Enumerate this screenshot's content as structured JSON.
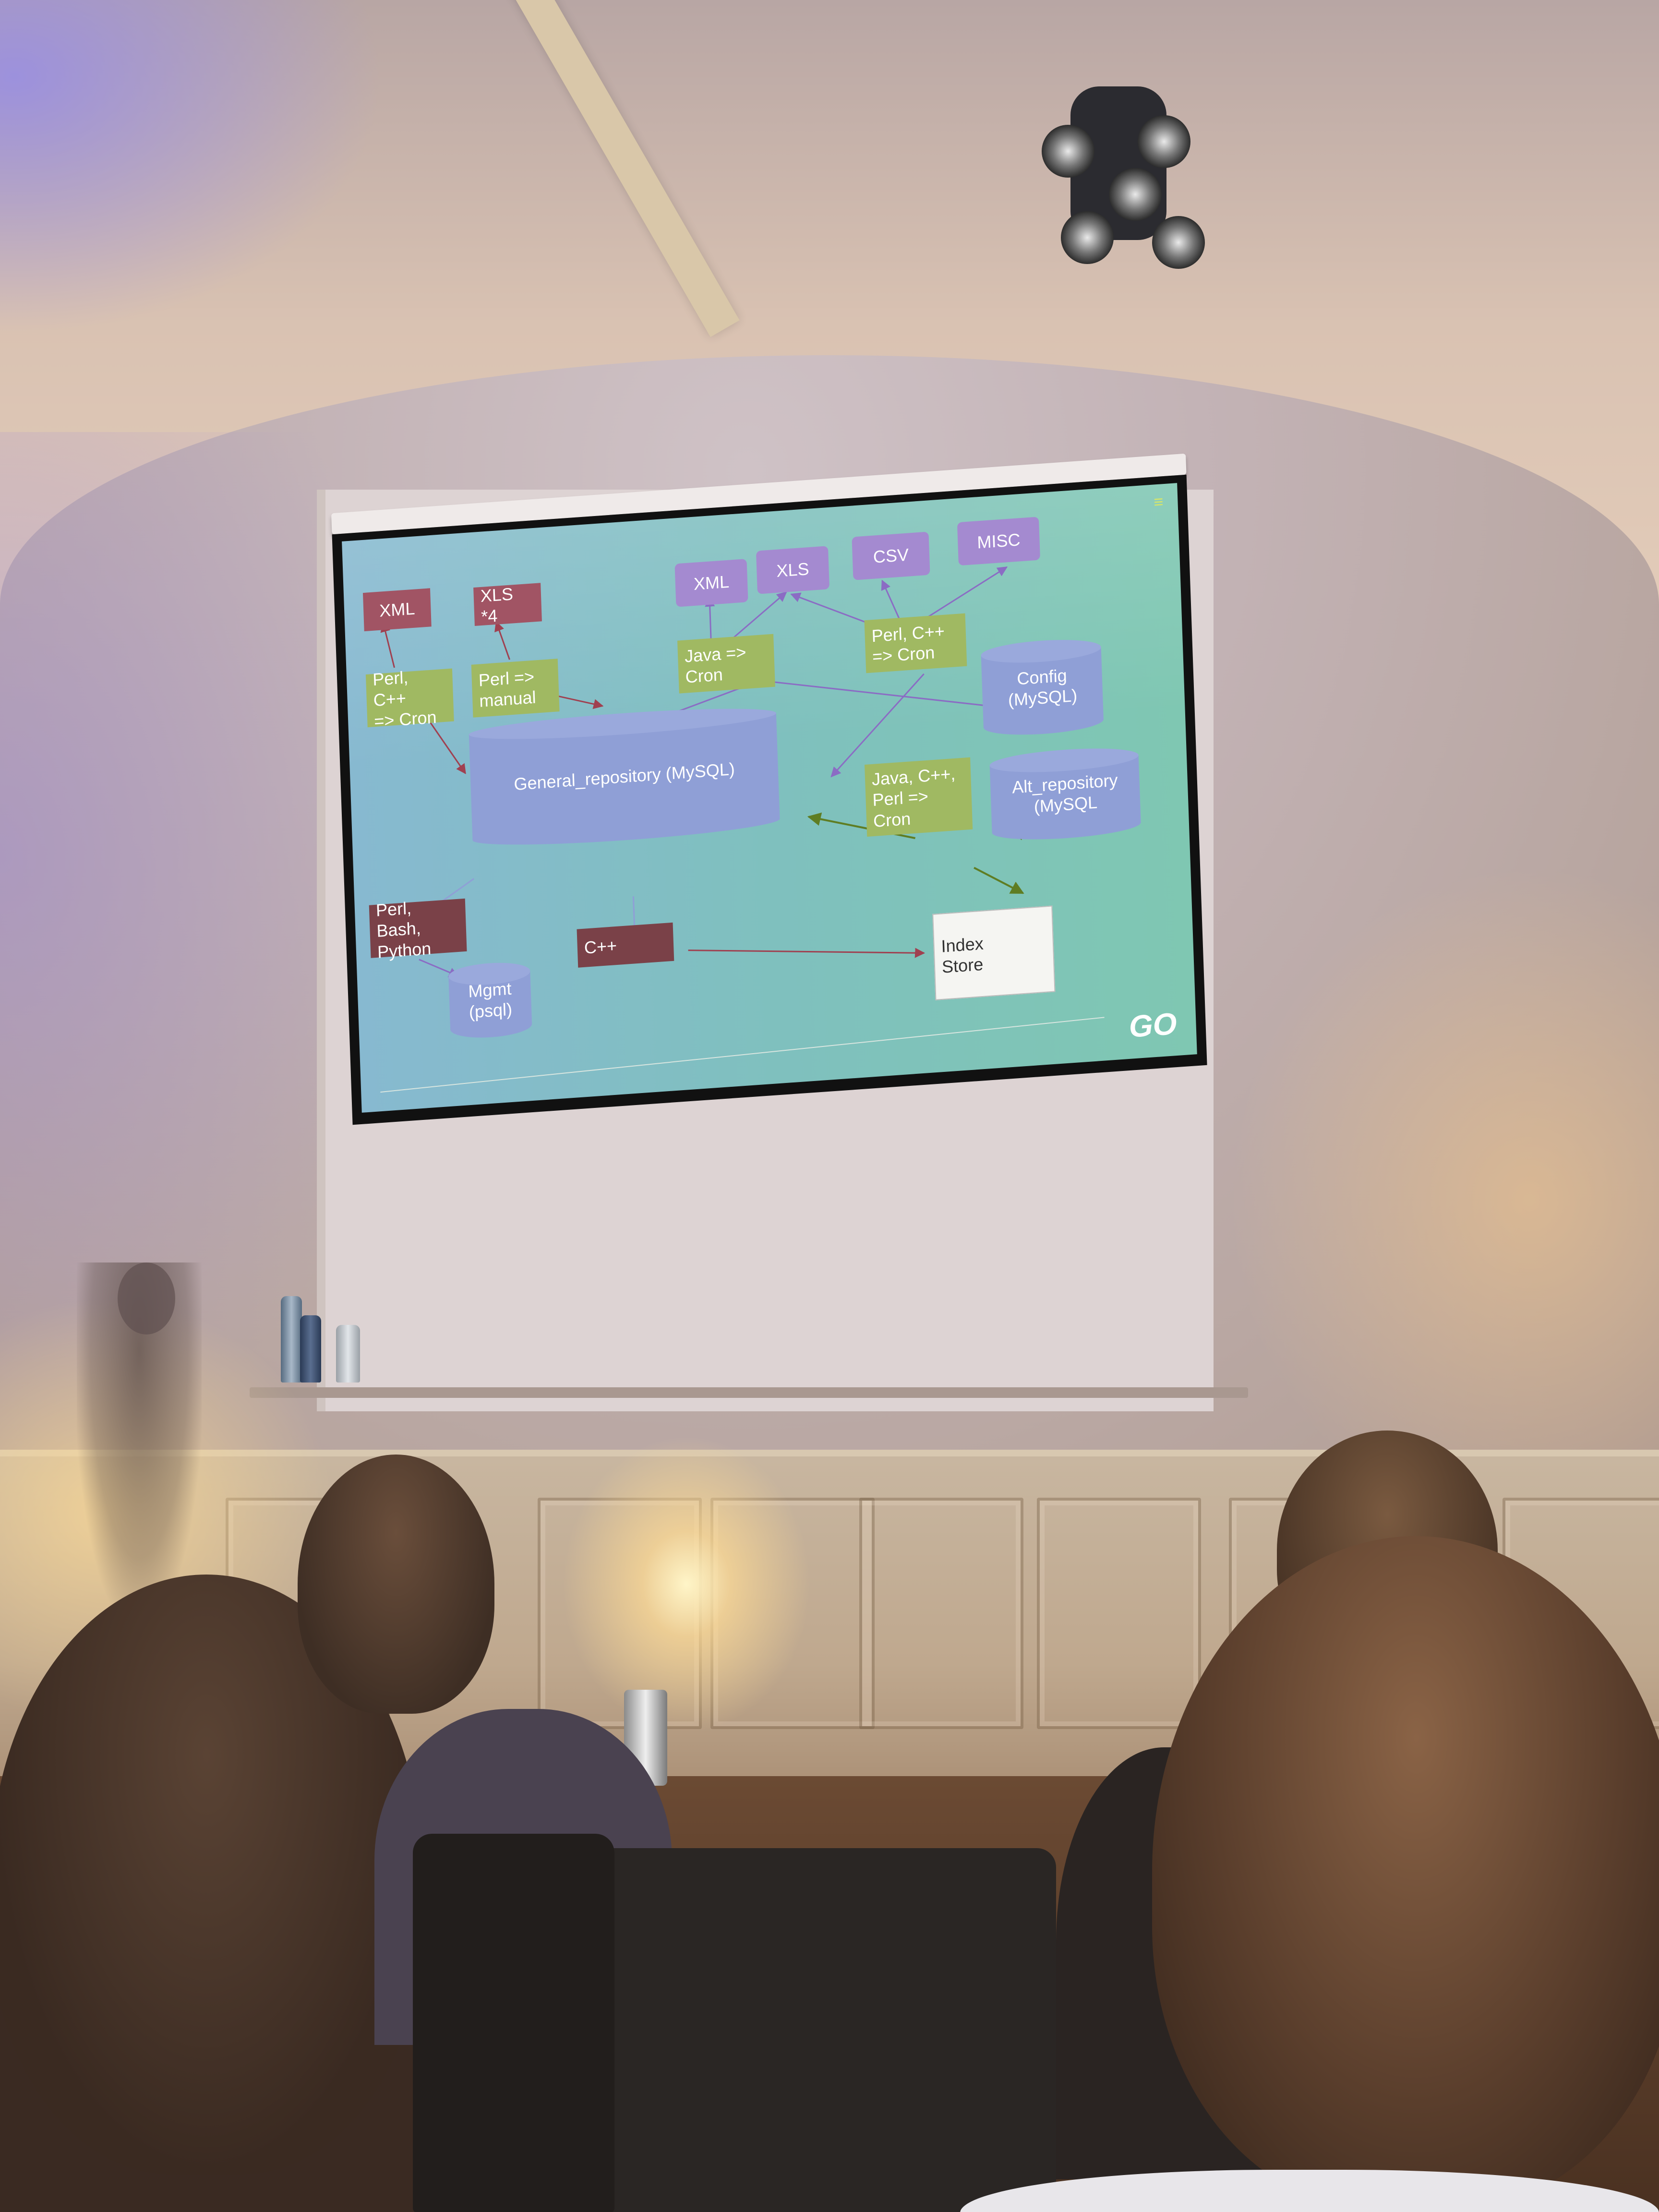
{
  "slide": {
    "menu_icon": "≡",
    "logo_text": "GO",
    "nodes": {
      "xml_left": "XML",
      "xls4": "XLS *4",
      "perl_cpp_cron_left": "Perl, C++\n=> Cron",
      "perl_manual": "Perl =>\nmanual",
      "xml_top": "XML",
      "xls_top": "XLS",
      "csv_top": "CSV",
      "misc_top": "MISC",
      "java_cron": "Java =>\nCron",
      "perl_cpp_cron_right": "Perl, C++\n=> Cron",
      "config_mysql": "Config\n(MySQL)",
      "general_repository": "General_repository (MySQL)",
      "java_cpp_perl_cron": "Java, C++,\nPerl =>\nCron",
      "alt_repository": "Alt_repository\n(MySQL",
      "perl_bash_python": "Perl, Bash,\nPython",
      "cpp": "C++",
      "index_store": "Index\nStore",
      "mgmt_psql": "Mgmt\n(psql)"
    },
    "colors": {
      "output_format": "#a15464",
      "source_format": "#a48ad0",
      "process": "#a0b962",
      "database": "#8f9fd6",
      "tool": "#7a4148",
      "store": "#f5f5f2"
    }
  },
  "scene": {
    "icons": [
      "projector-icon",
      "spotlight-icon",
      "water-bottle-icon"
    ]
  }
}
